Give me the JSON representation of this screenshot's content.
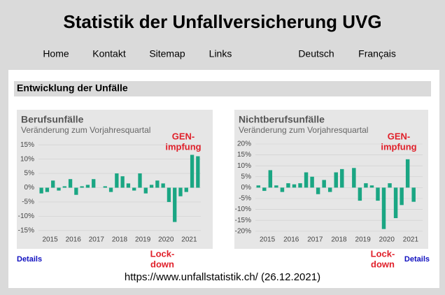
{
  "header": {
    "title": "Statistik der Unfallversicherung UVG"
  },
  "nav": [
    "Home",
    "Kontakt",
    "Sitemap",
    "Links",
    "Deutsch",
    "Français"
  ],
  "section": {
    "title": "Entwicklung der Unfälle"
  },
  "chart_data": [
    {
      "type": "bar",
      "title": "Berufsunfälle",
      "subtitle": "Veränderung zum Vorjahresquartal",
      "color": "#1aa683",
      "grid": true,
      "categories": [
        "2015",
        null,
        null,
        null,
        "2016",
        null,
        null,
        null,
        "2017",
        null,
        null,
        null,
        "2018",
        null,
        null,
        null,
        "2019",
        null,
        null,
        null,
        "2020",
        null,
        null,
        null,
        "2021",
        null,
        null,
        null
      ],
      "values": [
        -2,
        -1.5,
        2.5,
        -1,
        0.5,
        3,
        -2.5,
        0.5,
        1,
        3,
        0,
        0.5,
        -1.5,
        5,
        4,
        1.5,
        -1,
        5,
        -2,
        1,
        2.5,
        1.5,
        -5,
        -12,
        -3,
        -1.5,
        11.5,
        11
      ],
      "ylim": [
        -17,
        17
      ],
      "yticks": [
        {
          "value": -15,
          "label": "-15%"
        },
        {
          "value": -10,
          "label": "-10%"
        },
        {
          "value": -5,
          "label": "-5%"
        },
        {
          "value": 0,
          "label": "0%"
        },
        {
          "value": 5,
          "label": "5%"
        },
        {
          "value": 10,
          "label": "10%"
        },
        {
          "value": 15,
          "label": "15%"
        }
      ],
      "annotations": [
        [
          "GEN-",
          "impfung"
        ],
        [
          "Lock-",
          "down"
        ]
      ],
      "link": "Details"
    },
    {
      "type": "bar",
      "title": "Nichtberufsunfälle",
      "subtitle": "Veränderung zum Vorjahresquartal",
      "color": "#1aa683",
      "grid": true,
      "categories": [
        "2015",
        null,
        null,
        null,
        "2016",
        null,
        null,
        null,
        "2017",
        null,
        null,
        null,
        "2018",
        null,
        null,
        null,
        "2019",
        null,
        null,
        null,
        "2020",
        null,
        null,
        null,
        "2021",
        null,
        null,
        null
      ],
      "values": [
        1,
        -1.5,
        8,
        1,
        -2,
        2,
        1.5,
        2,
        7,
        5,
        -3,
        3.5,
        -2,
        7,
        8.5,
        0,
        9,
        -6,
        2,
        1,
        -6,
        -19,
        2,
        -14,
        -8,
        13,
        -6.5,
        0
      ],
      "ylim": [
        -22,
        22
      ],
      "yticks": [
        {
          "value": -20,
          "label": "-20%"
        },
        {
          "value": -15,
          "label": "-15%"
        },
        {
          "value": -10,
          "label": "-10%"
        },
        {
          "value": -5,
          "label": "-5%"
        },
        {
          "value": 0,
          "label": "0%"
        },
        {
          "value": 5,
          "label": "5%"
        },
        {
          "value": 10,
          "label": "10%"
        },
        {
          "value": 15,
          "label": "15%"
        },
        {
          "value": 20,
          "label": "20%"
        }
      ],
      "annotations": [
        [
          "GEN-",
          "impfung"
        ],
        [
          "Lock-",
          "down"
        ]
      ],
      "link": "Details"
    }
  ],
  "footer": {
    "source": "https://www.unfallstatistik.ch/ (26.12.2021)"
  }
}
